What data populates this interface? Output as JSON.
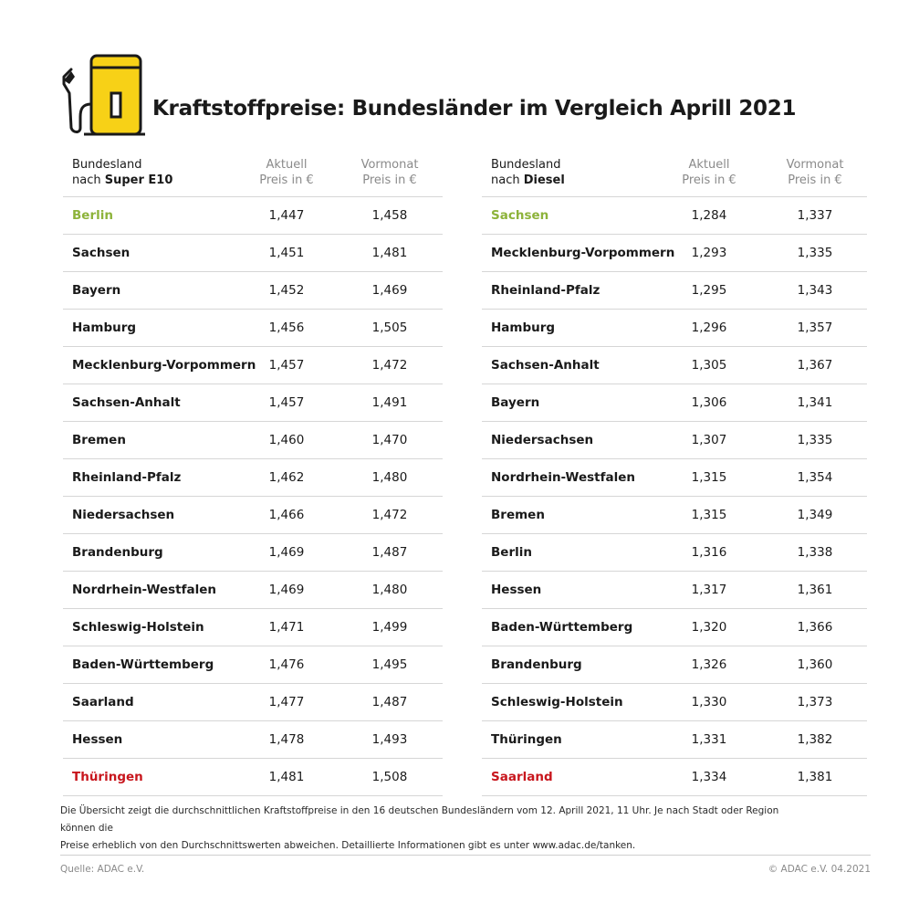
{
  "header": {
    "title": "Kraftstoffpreise: Bundesländer im Vergleich Aprill 2021",
    "logo_icon": "fuel-pump-icon",
    "accent_color": "#f7d117"
  },
  "tables": {
    "super": {
      "col1_line1": "Bundesland",
      "col1_line2_prefix": "nach ",
      "col1_line2_bold": "Super E10",
      "col2_line1": "Aktuell",
      "col2_line2": "Preis in €",
      "col3_line1": "Vormonat",
      "col3_line2": "Preis in €",
      "rows": [
        {
          "name": "Berlin",
          "current": "1,447",
          "previous": "1,458"
        },
        {
          "name": "Sachsen",
          "current": "1,451",
          "previous": "1,481"
        },
        {
          "name": "Bayern",
          "current": "1,452",
          "previous": "1,469"
        },
        {
          "name": "Hamburg",
          "current": "1,456",
          "previous": "1,505"
        },
        {
          "name": "Mecklenburg-Vorpommern",
          "current": "1,457",
          "previous": "1,472"
        },
        {
          "name": "Sachsen-Anhalt",
          "current": "1,457",
          "previous": "1,491"
        },
        {
          "name": "Bremen",
          "current": "1,460",
          "previous": "1,470"
        },
        {
          "name": "Rheinland-Pfalz",
          "current": "1,462",
          "previous": "1,480"
        },
        {
          "name": "Niedersachsen",
          "current": "1,466",
          "previous": "1,472"
        },
        {
          "name": "Brandenburg",
          "current": "1,469",
          "previous": "1,487"
        },
        {
          "name": "Nordrhein-Westfalen",
          "current": "1,469",
          "previous": "1,480"
        },
        {
          "name": "Schleswig-Holstein",
          "current": "1,471",
          "previous": "1,499"
        },
        {
          "name": "Baden-Württemberg",
          "current": "1,476",
          "previous": "1,495"
        },
        {
          "name": "Saarland",
          "current": "1,477",
          "previous": "1,487"
        },
        {
          "name": "Hessen",
          "current": "1,478",
          "previous": "1,493"
        },
        {
          "name": "Thüringen",
          "current": "1,481",
          "previous": "1,508"
        }
      ]
    },
    "diesel": {
      "col1_line1": "Bundesland",
      "col1_line2_prefix": "nach ",
      "col1_line2_bold": "Diesel",
      "col2_line1": "Aktuell",
      "col2_line2": "Preis in €",
      "col3_line1": "Vormonat",
      "col3_line2": "Preis in €",
      "rows": [
        {
          "name": "Sachsen",
          "current": "1,284",
          "previous": "1,337"
        },
        {
          "name": "Mecklenburg-Vorpommern",
          "current": "1,293",
          "previous": "1,335"
        },
        {
          "name": "Rheinland-Pfalz",
          "current": "1,295",
          "previous": "1,343"
        },
        {
          "name": "Hamburg",
          "current": "1,296",
          "previous": "1,357"
        },
        {
          "name": "Sachsen-Anhalt",
          "current": "1,305",
          "previous": "1,367"
        },
        {
          "name": "Bayern",
          "current": "1,306",
          "previous": "1,341"
        },
        {
          "name": "Niedersachsen",
          "current": "1,307",
          "previous": "1,335"
        },
        {
          "name": "Nordrhein-Westfalen",
          "current": "1,315",
          "previous": "1,354"
        },
        {
          "name": "Bremen",
          "current": "1,315",
          "previous": "1,349"
        },
        {
          "name": "Berlin",
          "current": "1,316",
          "previous": "1,338"
        },
        {
          "name": "Hessen",
          "current": "1,317",
          "previous": "1,361"
        },
        {
          "name": "Baden-Württemberg",
          "current": "1,320",
          "previous": "1,366"
        },
        {
          "name": "Brandenburg",
          "current": "1,326",
          "previous": "1,360"
        },
        {
          "name": "Schleswig-Holstein",
          "current": "1,330",
          "previous": "1,373"
        },
        {
          "name": "Thüringen",
          "current": "1,331",
          "previous": "1,382"
        },
        {
          "name": "Saarland",
          "current": "1,334",
          "previous": "1,381"
        }
      ]
    }
  },
  "colors": {
    "best": "#8db33a",
    "worst": "#c8161d"
  },
  "footer": {
    "note_line1": "Die Übersicht zeigt die durchschnittlichen Kraftstoffpreise in den 16 deutschen Bundesländern vom 12. Aprill 2021, 11 Uhr. Je nach Stadt oder Region können die",
    "note_line2": "Preise erheblich von den Durchschnittswerten abweichen. Detaillierte Informationen gibt es unter www.adac.de/tanken.",
    "source": "Quelle: ADAC e.V.",
    "copyright": "© ADAC e.V. 04.2021"
  }
}
